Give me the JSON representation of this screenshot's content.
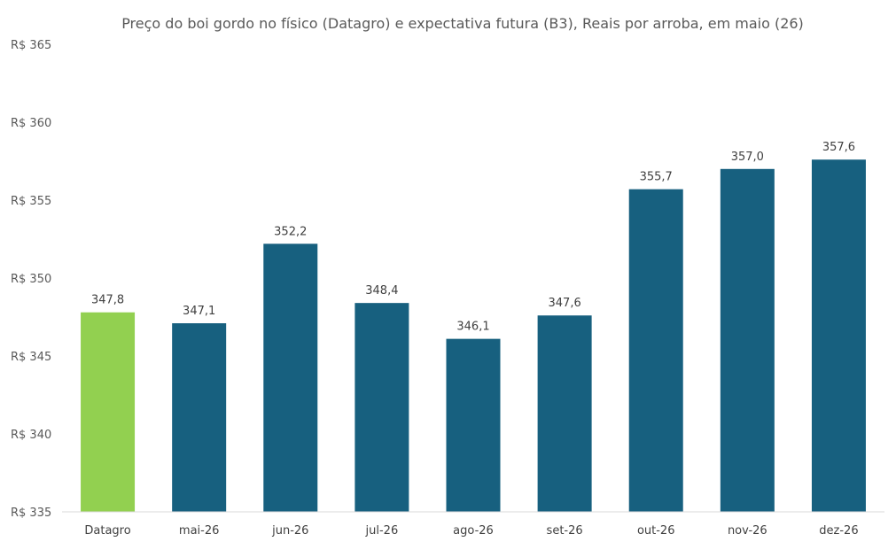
{
  "chart_data": {
    "type": "bar",
    "title": "Preço do boi gordo no físico (Datagro)  e expectativa futura (B3), Reais por arroba, em maio (26)",
    "categories": [
      "Datagro",
      "mai-26",
      "jun-26",
      "jul-26",
      "ago-26",
      "set-26",
      "out-26",
      "nov-26",
      "dez-26"
    ],
    "values": [
      347.8,
      347.1,
      352.2,
      348.4,
      346.1,
      347.6,
      355.7,
      357.0,
      357.6
    ],
    "data_labels": [
      "347,8",
      "347,1",
      "352,2",
      "348,4",
      "346,1",
      "347,6",
      "355,7",
      "357,0",
      "357,6"
    ],
    "ylim": [
      335,
      365
    ],
    "yticks": [
      335,
      340,
      345,
      350,
      355,
      360,
      365
    ],
    "ytick_labels": [
      "R$ 335",
      "R$ 340",
      "R$ 345",
      "R$ 350",
      "R$ 355",
      "R$ 360",
      "R$ 365"
    ],
    "xlabel": "",
    "ylabel": "",
    "grid": false,
    "legend": "none",
    "colors": {
      "highlight": "#92d050",
      "bar": "#17607f",
      "axis": "#d9d9d9"
    },
    "highlight_index": 0
  }
}
